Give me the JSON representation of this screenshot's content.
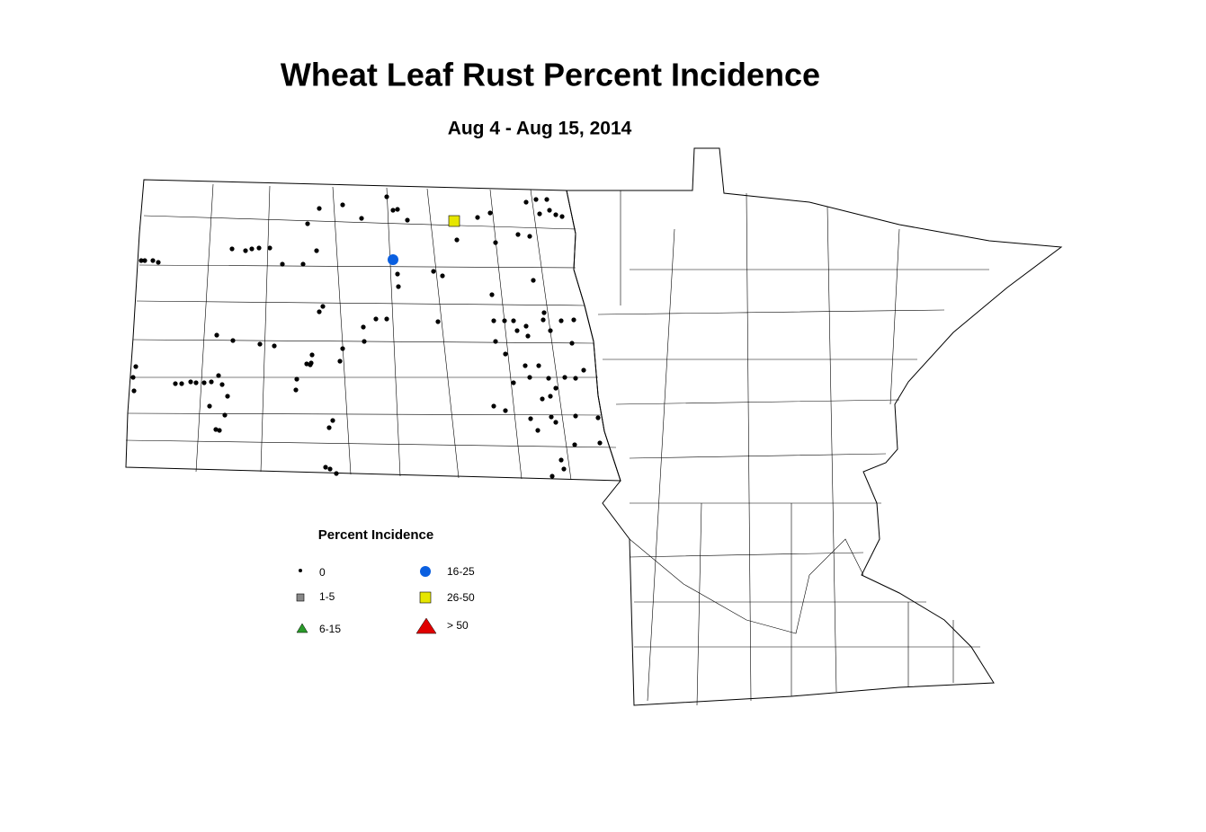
{
  "title": "Wheat Leaf Rust Percent Incidence",
  "subtitle": "Aug 4 - Aug 15, 2014",
  "legend": {
    "title": "Percent Incidence",
    "items": [
      {
        "label": "0"
      },
      {
        "label": "1-5"
      },
      {
        "label": "6-15"
      },
      {
        "label": "16-25"
      },
      {
        "label": "26-50"
      },
      {
        "label": "> 50"
      }
    ]
  }
}
